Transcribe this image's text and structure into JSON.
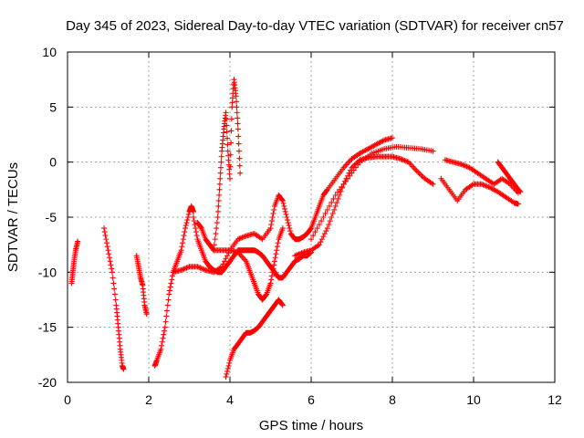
{
  "chart_data": {
    "type": "scatter",
    "title": "Day 345 of 2023, Sidereal Day-to-day VTEC variation (SDTVAR) for receiver cn57",
    "xlabel": "GPS time / hours",
    "ylabel": "SDTVAR / TECUs",
    "xlim": [
      0,
      12
    ],
    "ylim": [
      -20,
      10
    ],
    "xticks": [
      0,
      2,
      4,
      6,
      8,
      10,
      12
    ],
    "yticks": [
      -20,
      -15,
      -10,
      -5,
      0,
      5,
      10
    ],
    "grid": true,
    "marker": "+",
    "color": "#ff0000",
    "series": [
      {
        "name": "s1",
        "x": [
          0.1,
          0.13,
          0.16,
          0.2,
          0.25
        ],
        "y": [
          -11,
          -10,
          -9,
          -8,
          -7.2
        ]
      },
      {
        "name": "s2",
        "x": [
          0.9,
          1.0,
          1.1,
          1.2,
          1.25,
          1.3,
          1.35,
          1.38
        ],
        "y": [
          -6,
          -8,
          -10,
          -13,
          -15,
          -17,
          -18.5,
          -18.8
        ]
      },
      {
        "name": "s3",
        "x": [
          1.7,
          1.75,
          1.8,
          1.85,
          1.9,
          1.95
        ],
        "y": [
          -8.5,
          -9.5,
          -10.5,
          -11.2,
          -13,
          -13.8
        ]
      },
      {
        "name": "s4",
        "x": [
          2.15,
          2.2,
          2.3,
          2.4,
          2.5,
          2.6,
          2.7,
          2.8,
          2.9,
          3.0,
          3.05,
          3.1
        ],
        "y": [
          -18.5,
          -18,
          -17,
          -15,
          -12,
          -10,
          -9,
          -8,
          -6,
          -4.5,
          -4,
          -4.5
        ]
      },
      {
        "name": "s5",
        "x": [
          3.1,
          3.2,
          3.3,
          3.4,
          3.5,
          3.6,
          3.7,
          3.8,
          3.9,
          4.0,
          4.1,
          4.2,
          4.3,
          4.4,
          4.5,
          4.6,
          4.7,
          4.8,
          4.9,
          5.0,
          5.1,
          5.2,
          5.3,
          5.4,
          5.5,
          5.6,
          5.7,
          5.8,
          5.9,
          6.0
        ],
        "y": [
          -5,
          -7,
          -8,
          -9,
          -9.5,
          -9.8,
          -10,
          -10,
          -9.5,
          -9,
          -8.5,
          -8,
          -8,
          -8,
          -8,
          -8,
          -8.2,
          -8.5,
          -9,
          -9.5,
          -10,
          -10.5,
          -10.5,
          -10,
          -9.5,
          -9,
          -8.8,
          -8.5,
          -8.5,
          -8.2
        ]
      },
      {
        "name": "s6",
        "x": [
          2.6,
          2.8,
          3.0,
          3.2,
          3.4,
          3.6,
          3.8,
          4.0,
          4.2,
          4.4,
          4.6,
          4.8,
          5.0,
          5.1,
          5.2,
          5.3,
          5.4,
          5.5,
          5.6,
          5.7,
          5.8,
          5.9,
          6.0,
          6.1,
          6.2,
          6.3,
          6.4,
          6.6,
          6.8,
          7.0,
          7.2,
          7.4,
          7.6,
          7.8,
          8.0
        ],
        "y": [
          -10,
          -9.8,
          -9.5,
          -9.5,
          -9.8,
          -10,
          -9.5,
          -8,
          -7,
          -6.7,
          -6.5,
          -7,
          -6,
          -4,
          -3,
          -3.5,
          -5,
          -6.5,
          -7,
          -7,
          -6.8,
          -6.5,
          -6,
          -5,
          -4,
          -3,
          -2.5,
          -1.5,
          -0.5,
          0.3,
          0.8,
          1.2,
          1.6,
          2.0,
          2.2
        ]
      },
      {
        "name": "s7",
        "x": [
          3.2,
          3.3,
          3.4,
          3.5,
          3.6,
          3.8,
          4.0,
          4.2,
          4.4,
          4.5,
          4.6,
          4.7,
          4.8,
          4.9,
          5.0,
          5.1,
          5.2,
          5.3
        ],
        "y": [
          -5.5,
          -6,
          -7,
          -7.5,
          -8,
          -8,
          -8,
          -8.2,
          -9,
          -10,
          -11,
          -12,
          -12.5,
          -12,
          -11,
          -9,
          -7,
          -6
        ]
      },
      {
        "name": "s8",
        "x": [
          3.9,
          4.0,
          4.1,
          4.2,
          4.3,
          4.4,
          4.5,
          4.6,
          4.7,
          4.8,
          4.9,
          5.0,
          5.1,
          5.2,
          5.3
        ],
        "y": [
          -19.5,
          -18,
          -17,
          -16.5,
          -16,
          -15.5,
          -15.5,
          -15.3,
          -15,
          -14.5,
          -14,
          -13.5,
          -13,
          -12.5,
          -13
        ]
      },
      {
        "name": "s9",
        "x": [
          3.6,
          3.7,
          3.75,
          3.8,
          3.85,
          3.9,
          3.95,
          4.0,
          4.05,
          4.1,
          4.15,
          4.2,
          4.25
        ],
        "y": [
          -8,
          -5,
          -2,
          1,
          3,
          4.5,
          1,
          -1.5,
          5,
          7.5,
          6,
          3,
          -1
        ]
      },
      {
        "name": "s10",
        "x": [
          5.6,
          5.8,
          6.0,
          6.2,
          6.4,
          6.6,
          6.8,
          7.0,
          7.2,
          7.4,
          7.6,
          7.8,
          8.0,
          8.2,
          8.4,
          8.6,
          8.8,
          9.0
        ],
        "y": [
          -8.5,
          -8.2,
          -8,
          -7.5,
          -6,
          -4,
          -2,
          -0.5,
          0.2,
          0.4,
          0.5,
          0.5,
          0.5,
          0.3,
          0,
          -0.8,
          -1.5,
          -2
        ]
      },
      {
        "name": "s11",
        "x": [
          6.0,
          6.3,
          6.6,
          6.9,
          7.2,
          7.5,
          7.8,
          8.1,
          8.4,
          8.7,
          9.0
        ],
        "y": [
          -7,
          -5,
          -3,
          -1.5,
          0,
          0.8,
          1.2,
          1.4,
          1.3,
          1.2,
          1.0
        ]
      },
      {
        "name": "s12",
        "x": [
          9.2,
          9.4,
          9.6,
          9.8,
          10.0,
          10.2,
          10.4,
          10.6,
          10.8,
          11.0,
          11.1
        ],
        "y": [
          -1.5,
          -2.5,
          -3.5,
          -2.5,
          -2,
          -2,
          -2.3,
          -2.7,
          -3.2,
          -3.7,
          -3.8
        ]
      },
      {
        "name": "s13",
        "x": [
          9.3,
          9.5,
          9.7,
          9.9,
          10.1,
          10.3,
          10.5,
          10.7,
          10.9,
          11.1
        ],
        "y": [
          0.2,
          0,
          -0.2,
          -0.5,
          -1,
          -1.5,
          -2,
          -1.5,
          -2,
          -2.8
        ]
      },
      {
        "name": "s14",
        "x": [
          10.6,
          10.7,
          10.8,
          10.9,
          11.0,
          11.1,
          11.15
        ],
        "y": [
          0,
          -0.5,
          -1,
          -1.5,
          -2,
          -2.5,
          -2.7
        ]
      }
    ]
  }
}
